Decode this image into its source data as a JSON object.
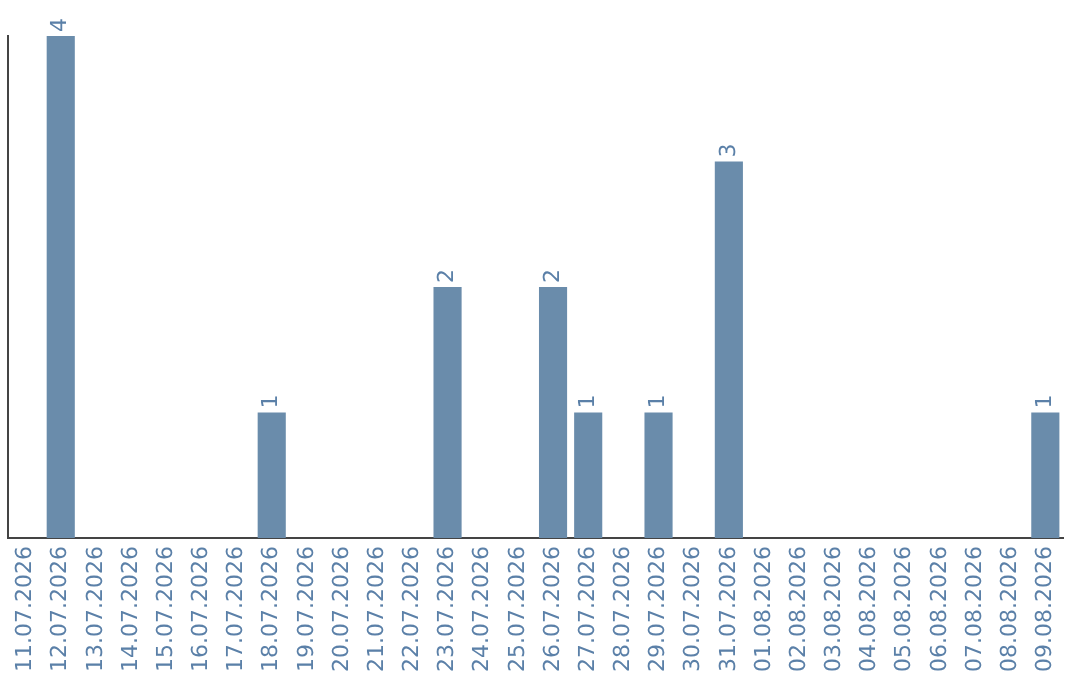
{
  "chart_data": {
    "type": "bar",
    "categories": [
      "11.07.2026",
      "12.07.2026",
      "13.07.2026",
      "14.07.2026",
      "15.07.2026",
      "16.07.2026",
      "17.07.2026",
      "18.07.2026",
      "19.07.2026",
      "20.07.2026",
      "21.07.2026",
      "22.07.2026",
      "23.07.2026",
      "24.07.2026",
      "25.07.2026",
      "26.07.2026",
      "27.07.2026",
      "28.07.2026",
      "29.07.2026",
      "30.07.2026",
      "31.07.2026",
      "01.08.2026",
      "02.08.2026",
      "03.08.2026",
      "04.08.2026",
      "05.08.2026",
      "06.08.2026",
      "07.08.2026",
      "08.08.2026",
      "09.08.2026"
    ],
    "values": [
      0,
      4,
      0,
      0,
      0,
      0,
      0,
      1,
      0,
      0,
      0,
      0,
      2,
      0,
      0,
      2,
      1,
      0,
      1,
      0,
      3,
      0,
      0,
      0,
      0,
      0,
      0,
      0,
      0,
      1
    ],
    "value_labels": [
      null,
      "4",
      null,
      null,
      null,
      null,
      null,
      "1",
      null,
      null,
      null,
      null,
      "2",
      null,
      null,
      "2",
      "1",
      null,
      "1",
      null,
      "3",
      null,
      null,
      null,
      null,
      null,
      null,
      null,
      null,
      "1"
    ],
    "color": "#6a8cab",
    "grid": false,
    "legend": false
  }
}
